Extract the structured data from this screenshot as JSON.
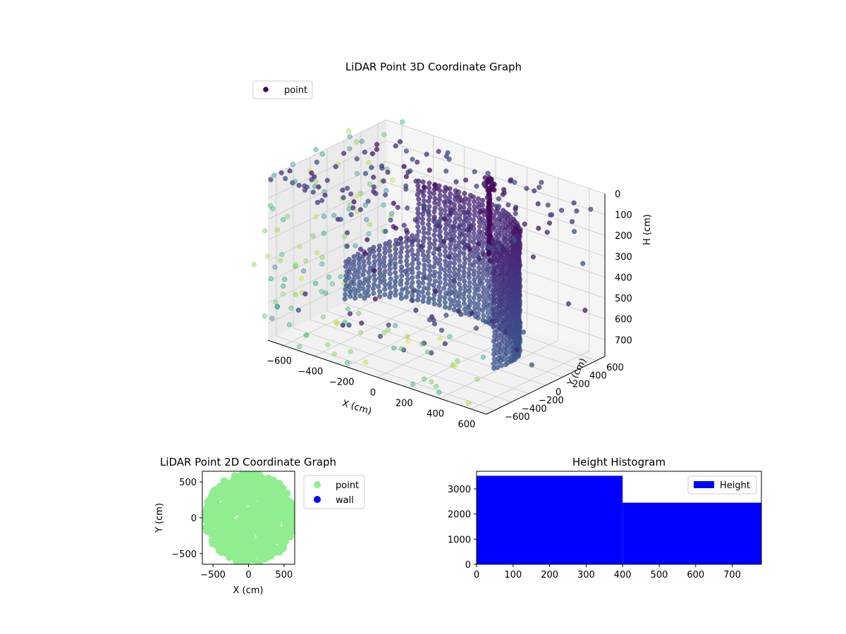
{
  "chart_data": [
    {
      "type": "scatter3d",
      "title": "LiDAR Point 3D Coordinate Graph",
      "xlabel": "X (cm)",
      "ylabel": "Y (cm)",
      "zlabel": "H (cm)",
      "xticks": [
        "−600",
        "−400",
        "−200",
        "0",
        "200",
        "400",
        "600"
      ],
      "yticks": [
        "−600",
        "−400",
        "−200",
        "0",
        "200",
        "400",
        "600"
      ],
      "zticks": [
        "0",
        "100",
        "200",
        "300",
        "400",
        "500",
        "600",
        "700"
      ],
      "xlim": [
        -700,
        700
      ],
      "ylim": [
        -700,
        700
      ],
      "zlim": [
        0,
        780
      ],
      "z_axis_inverted": true,
      "colormap": "viridis",
      "legend": {
        "entries": [
          "point"
        ],
        "position": "upper-left"
      },
      "structure": {
        "wall_arc_start_deg": -15,
        "wall_arc_end_deg": 165,
        "wall_radius_cm": 600,
        "wall_height_range_cm": [
          0,
          700
        ],
        "center_column": {
          "x": 150,
          "y": 350,
          "height_range_cm": [
            0,
            350
          ]
        }
      }
    },
    {
      "type": "scatter",
      "title": "LiDAR Point 2D Coordinate Graph",
      "xlabel": "X (cm)",
      "ylabel": "Y (cm)",
      "xticks": [
        "−500",
        "0",
        "500"
      ],
      "yticks": [
        "500",
        "0",
        "−500"
      ],
      "xlim": [
        -650,
        650
      ],
      "ylim": [
        -650,
        650
      ],
      "series": [
        {
          "name": "point",
          "color": "#90ee90"
        },
        {
          "name": "wall",
          "color": "#0000ff"
        }
      ],
      "legend": {
        "position": "outside-right"
      }
    },
    {
      "type": "histogram",
      "title": "Height Histogram",
      "xticks": [
        "0",
        "100",
        "200",
        "300",
        "400",
        "500",
        "600",
        "700"
      ],
      "yticks": [
        "0",
        "1000",
        "2000",
        "3000"
      ],
      "xlim": [
        0,
        780
      ],
      "ylim": [
        0,
        3700
      ],
      "bins": [
        {
          "from": 0,
          "to": 400,
          "count": 3520
        },
        {
          "from": 400,
          "to": 780,
          "count": 2450
        }
      ],
      "series": [
        {
          "name": "Height",
          "color": "#0000ff"
        }
      ],
      "legend": {
        "position": "upper-right"
      }
    }
  ]
}
